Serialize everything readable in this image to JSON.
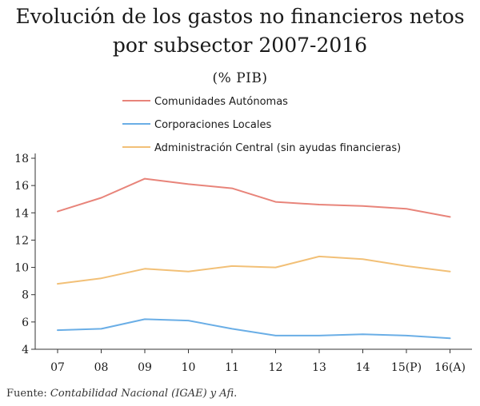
{
  "chart_data": {
    "type": "line",
    "title_line1": "Evolución de los gastos no financieros netos",
    "title_line2": "por subsector 2007-2016",
    "subtitle": "(% PIB)",
    "categories": [
      "07",
      "08",
      "09",
      "10",
      "11",
      "12",
      "13",
      "14",
      "15(P)",
      "16(A)"
    ],
    "series": [
      {
        "name": "Comunidades Autónomas",
        "color": "#e8847a",
        "values": [
          14.1,
          15.1,
          16.5,
          16.1,
          15.8,
          14.8,
          14.6,
          14.5,
          14.3,
          13.7
        ]
      },
      {
        "name": "Corporaciones Locales",
        "color": "#6aaee6",
        "values": [
          5.4,
          5.5,
          6.2,
          6.1,
          5.5,
          5.0,
          5.0,
          5.1,
          5.0,
          4.8
        ]
      },
      {
        "name": "Administración Central (sin ayudas financieras)",
        "color": "#f2c077",
        "values": [
          8.8,
          9.2,
          9.9,
          9.7,
          10.1,
          10.0,
          10.8,
          10.6,
          10.1,
          9.7
        ]
      }
    ],
    "ylim": [
      4,
      18
    ],
    "yticks": [
      4,
      6,
      8,
      10,
      12,
      14,
      16,
      18
    ],
    "grid": false,
    "legend_position": "top"
  },
  "source": {
    "prefix": "Fuente: ",
    "italic": "Contabilidad Nacional (IGAE) y Afi",
    "suffix": "."
  }
}
